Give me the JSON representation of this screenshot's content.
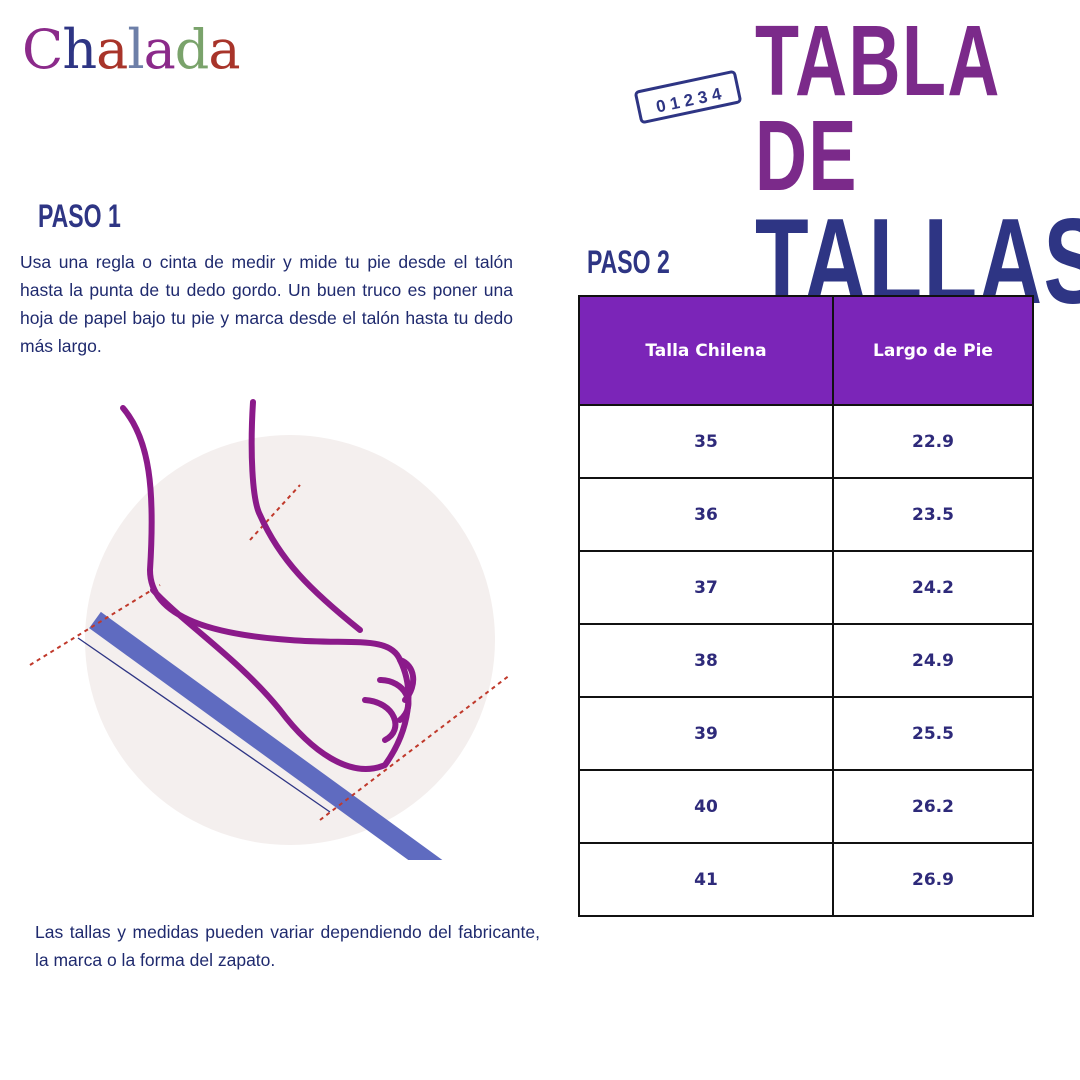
{
  "brand": {
    "logo_text": "Chalada",
    "letters": [
      {
        "c": "C",
        "color": "#8b2a8a"
      },
      {
        "c": "h",
        "color": "#2e3584"
      },
      {
        "c": "a",
        "color": "#a8342a"
      },
      {
        "c": "l",
        "color": "#6d7fa8"
      },
      {
        "c": "a",
        "color": "#8b2a8a"
      },
      {
        "c": "d",
        "color": "#7aa36b"
      },
      {
        "c": "a",
        "color": "#a8342a"
      }
    ]
  },
  "title": {
    "line1": "TABLA DE",
    "line2": "TALLAS",
    "ruler_text": "0 1 2 3 4"
  },
  "step1": {
    "heading": "PASO 1",
    "text": "Usa una regla o cinta de medir y mide tu pie desde el talón hasta la punta de tu dedo gordo. Un buen truco es poner una hoja de papel bajo tu pie y marca desde el talón hasta tu dedo más largo."
  },
  "step2": {
    "heading": "PASO 2"
  },
  "table": {
    "headers": [
      "Talla Chilena",
      "Largo de Pie"
    ],
    "rows": [
      [
        "35",
        "22.9"
      ],
      [
        "36",
        "23.5"
      ],
      [
        "37",
        "24.2"
      ],
      [
        "38",
        "24.9"
      ],
      [
        "39",
        "25.5"
      ],
      [
        "40",
        "26.2"
      ],
      [
        "41",
        "26.9"
      ]
    ]
  },
  "note": "Las tallas y medidas pueden variar dependiendo del fabricante, la marca o la forma del zapato.",
  "colors": {
    "purple": "#7b2a8a",
    "navy": "#2e3584",
    "header": "#7b25b8"
  }
}
